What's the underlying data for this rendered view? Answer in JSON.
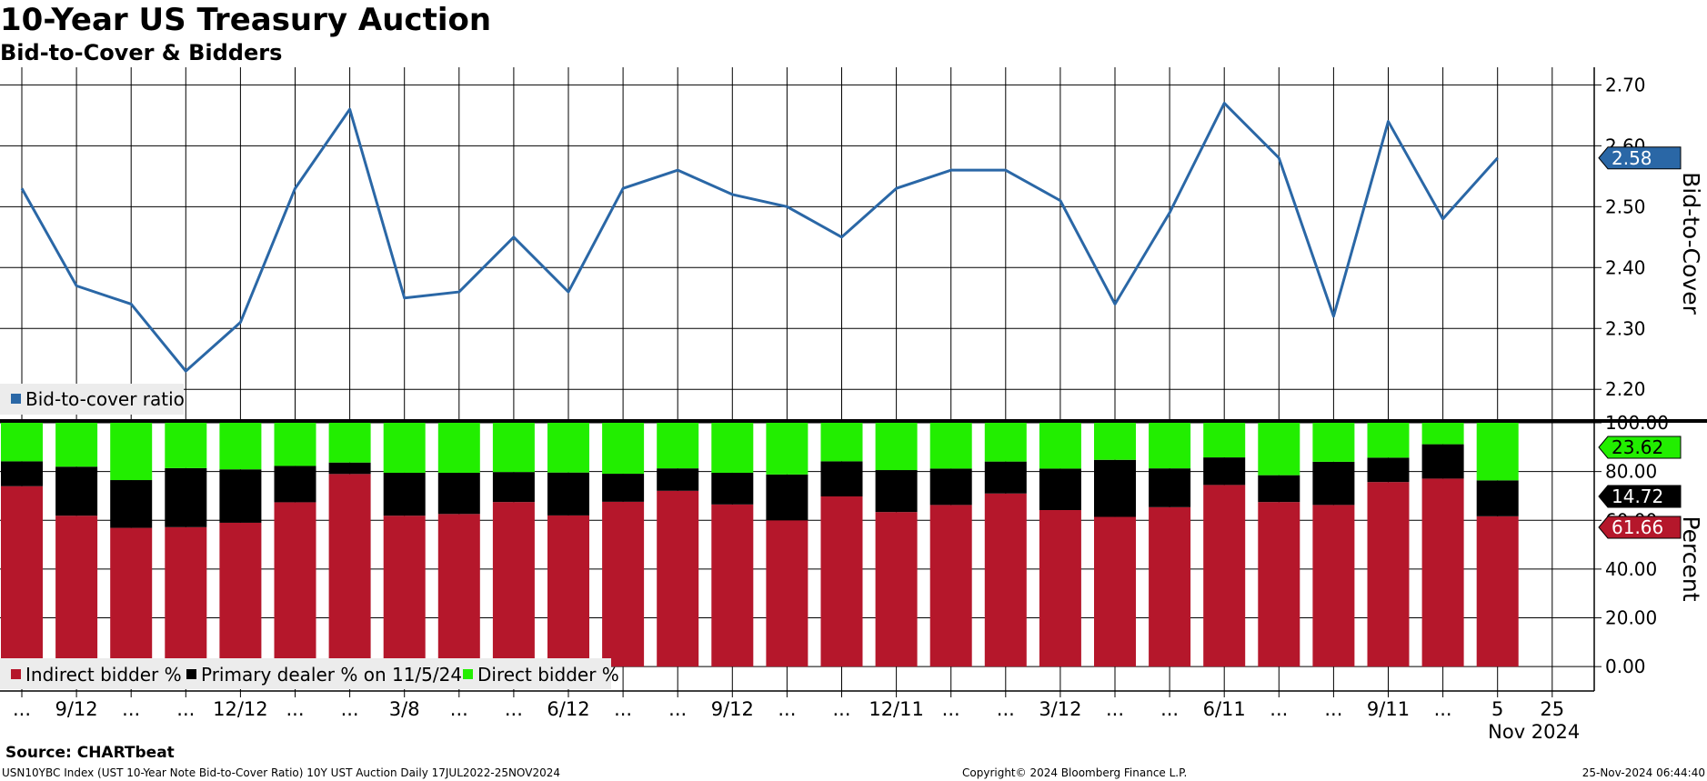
{
  "title": "10-Year US Treasury Auction",
  "subtitle": "Bid-to-Cover & Bidders",
  "source": "Source: CHARTbeat",
  "footer": {
    "left": "USN10YBC Index (UST 10-Year Note Bid-to-Cover Ratio) 10Y UST Auction  Daily 17JUL2022-25NOV2024",
    "center": "Copyright© 2024 Bloomberg Finance L.P.",
    "right": "25-Nov-2024 06:44:40"
  },
  "colors": {
    "line": "#2a67a6",
    "indirect": "#b5172b",
    "primary": "#000000",
    "direct": "#22ee00",
    "badge_line": "#2a67a6"
  },
  "x_axis": {
    "labels": [
      "...",
      "9/12",
      "...",
      "...",
      "12/12",
      "...",
      "...",
      "3/8",
      "...",
      "...",
      "6/12",
      "...",
      "...",
      "9/12",
      "...",
      "...",
      "12/11",
      "...",
      "...",
      "3/12",
      "...",
      "...",
      "6/11",
      "...",
      "...",
      "9/11",
      "...",
      "5",
      "25"
    ],
    "year_label": "Nov 2024"
  },
  "chart_data": [
    {
      "type": "line",
      "ylabel": "Bid-to-Cover",
      "ylim": [
        2.16,
        2.72
      ],
      "yticks": [
        "2.20",
        "2.30",
        "2.40",
        "2.50",
        "2.60",
        "2.70"
      ],
      "grid": true,
      "legend": "bottom-left",
      "series": [
        {
          "name": "Bid-to-cover ratio",
          "values": [
            2.53,
            2.37,
            2.34,
            2.23,
            2.31,
            2.53,
            2.66,
            2.35,
            2.36,
            2.45,
            2.36,
            2.53,
            2.56,
            2.52,
            2.5,
            2.45,
            2.53,
            2.56,
            2.56,
            2.51,
            2.34,
            2.49,
            2.67,
            2.58,
            2.32,
            2.64,
            2.48,
            2.58
          ]
        }
      ],
      "last_value_label": "2.58"
    },
    {
      "type": "bar",
      "stacked": true,
      "ylabel": "Percent",
      "ylim": [
        -10,
        100
      ],
      "yticks": [
        "0.00",
        "20.00",
        "40.00",
        "60.00",
        "80.00",
        "100.00"
      ],
      "grid": true,
      "legend": "bottom-left",
      "series": [
        {
          "name": "Indirect bidder %",
          "values": [
            74.0,
            61.9,
            56.9,
            57.2,
            59.0,
            67.4,
            79.0,
            61.9,
            62.6,
            67.5,
            62.0,
            67.6,
            72.1,
            66.5,
            60.0,
            69.8,
            63.4,
            66.3,
            71.0,
            64.2,
            61.4,
            65.4,
            74.5,
            67.5,
            66.3,
            75.7,
            77.1,
            61.66
          ]
        },
        {
          "name": "Primary dealer % on 11/5/24",
          "values": [
            10.2,
            20.1,
            19.6,
            24.2,
            21.9,
            14.9,
            4.7,
            17.6,
            16.9,
            12.3,
            17.6,
            11.5,
            9.2,
            13.0,
            18.8,
            14.4,
            17.2,
            14.9,
            13.1,
            17.0,
            23.4,
            15.9,
            11.3,
            11.0,
            17.7,
            10.0,
            14.1,
            14.72
          ]
        },
        {
          "name": "Direct bidder %",
          "values": [
            15.8,
            18.0,
            23.5,
            18.6,
            19.1,
            17.7,
            16.3,
            20.5,
            20.5,
            20.2,
            20.4,
            20.9,
            18.7,
            20.5,
            21.2,
            15.8,
            19.4,
            18.8,
            15.9,
            18.8,
            15.2,
            18.7,
            14.2,
            21.5,
            16.0,
            14.3,
            8.8,
            23.62
          ]
        }
      ],
      "last_value_labels": {
        "direct": "23.62",
        "primary": "14.72",
        "indirect": "61.66"
      }
    }
  ]
}
